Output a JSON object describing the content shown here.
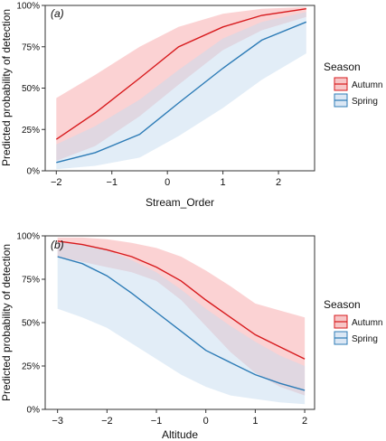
{
  "legend_title": "Season",
  "chart_data": [
    {
      "type": "line",
      "panel_label": "(a)",
      "xlabel": "Stream_Order",
      "ylabel": "Predicted probability of detection",
      "xlim": [
        -2.2,
        2.65
      ],
      "ylim": [
        0,
        1
      ],
      "xticks": [
        -2,
        -1,
        0,
        1,
        2
      ],
      "xtick_labels": [
        "−2",
        "−1",
        "0",
        "1",
        "2"
      ],
      "yticks": [
        0,
        0.25,
        0.5,
        0.75,
        1.0
      ],
      "ytick_labels": [
        "0%",
        "25%",
        "50%",
        "75%",
        "100%"
      ],
      "grid": false,
      "legend_position": "right",
      "series": [
        {
          "name": "Autumn",
          "color": "#d7191c",
          "band_color": "#f7a6a8",
          "x": [
            -2.0,
            -1.3,
            -0.5,
            0.2,
            1.0,
            1.7,
            2.5
          ],
          "y": [
            0.19,
            0.35,
            0.56,
            0.75,
            0.87,
            0.94,
            0.98
          ],
          "lower": [
            0.06,
            0.15,
            0.33,
            0.52,
            0.73,
            0.85,
            0.93
          ],
          "upper": [
            0.44,
            0.58,
            0.75,
            0.87,
            0.95,
            0.98,
            0.99
          ]
        },
        {
          "name": "Spring",
          "color": "#2c7bb6",
          "band_color": "#c6dbef",
          "x": [
            -2.0,
            -1.3,
            -0.5,
            0.2,
            1.0,
            1.7,
            2.5
          ],
          "y": [
            0.05,
            0.11,
            0.22,
            0.41,
            0.62,
            0.79,
            0.9
          ],
          "lower": [
            0.01,
            0.03,
            0.08,
            0.21,
            0.38,
            0.55,
            0.71
          ],
          "upper": [
            0.16,
            0.27,
            0.43,
            0.61,
            0.8,
            0.9,
            0.96
          ]
        }
      ]
    },
    {
      "type": "line",
      "panel_label": "(b)",
      "xlabel": "Altitude",
      "ylabel": "Predicted probability of detection",
      "xlim": [
        -3.25,
        2.2
      ],
      "ylim": [
        0,
        1
      ],
      "xticks": [
        -3,
        -2,
        -1,
        0,
        1,
        2
      ],
      "xtick_labels": [
        "−3",
        "−2",
        "−1",
        "0",
        "1",
        "2"
      ],
      "yticks": [
        0,
        0.25,
        0.5,
        0.75,
        1.0
      ],
      "ytick_labels": [
        "0%",
        "25%",
        "50%",
        "75%",
        "100%"
      ],
      "grid": false,
      "legend_position": "right",
      "series": [
        {
          "name": "Autumn",
          "color": "#d7191c",
          "band_color": "#f7a6a8",
          "x": [
            -3.0,
            -2.5,
            -2.0,
            -1.5,
            -1.0,
            -0.5,
            0.0,
            0.5,
            1.0,
            1.5,
            2.0
          ],
          "y": [
            0.97,
            0.95,
            0.92,
            0.88,
            0.82,
            0.74,
            0.63,
            0.53,
            0.43,
            0.36,
            0.29
          ],
          "lower": [
            0.88,
            0.85,
            0.82,
            0.79,
            0.74,
            0.63,
            0.48,
            0.33,
            0.21,
            0.13,
            0.08
          ],
          "upper": [
            0.99,
            0.99,
            0.98,
            0.96,
            0.93,
            0.88,
            0.8,
            0.71,
            0.61,
            0.57,
            0.53
          ]
        },
        {
          "name": "Spring",
          "color": "#2c7bb6",
          "band_color": "#c6dbef",
          "x": [
            -3.0,
            -2.5,
            -2.0,
            -1.5,
            -1.0,
            -0.5,
            0.0,
            0.5,
            1.0,
            1.5,
            2.0
          ],
          "y": [
            0.88,
            0.84,
            0.77,
            0.67,
            0.56,
            0.45,
            0.34,
            0.27,
            0.2,
            0.15,
            0.11
          ],
          "lower": [
            0.58,
            0.53,
            0.47,
            0.38,
            0.29,
            0.2,
            0.13,
            0.08,
            0.06,
            0.04,
            0.03
          ],
          "upper": [
            0.97,
            0.95,
            0.92,
            0.86,
            0.79,
            0.69,
            0.58,
            0.48,
            0.39,
            0.31,
            0.25
          ]
        }
      ]
    }
  ]
}
